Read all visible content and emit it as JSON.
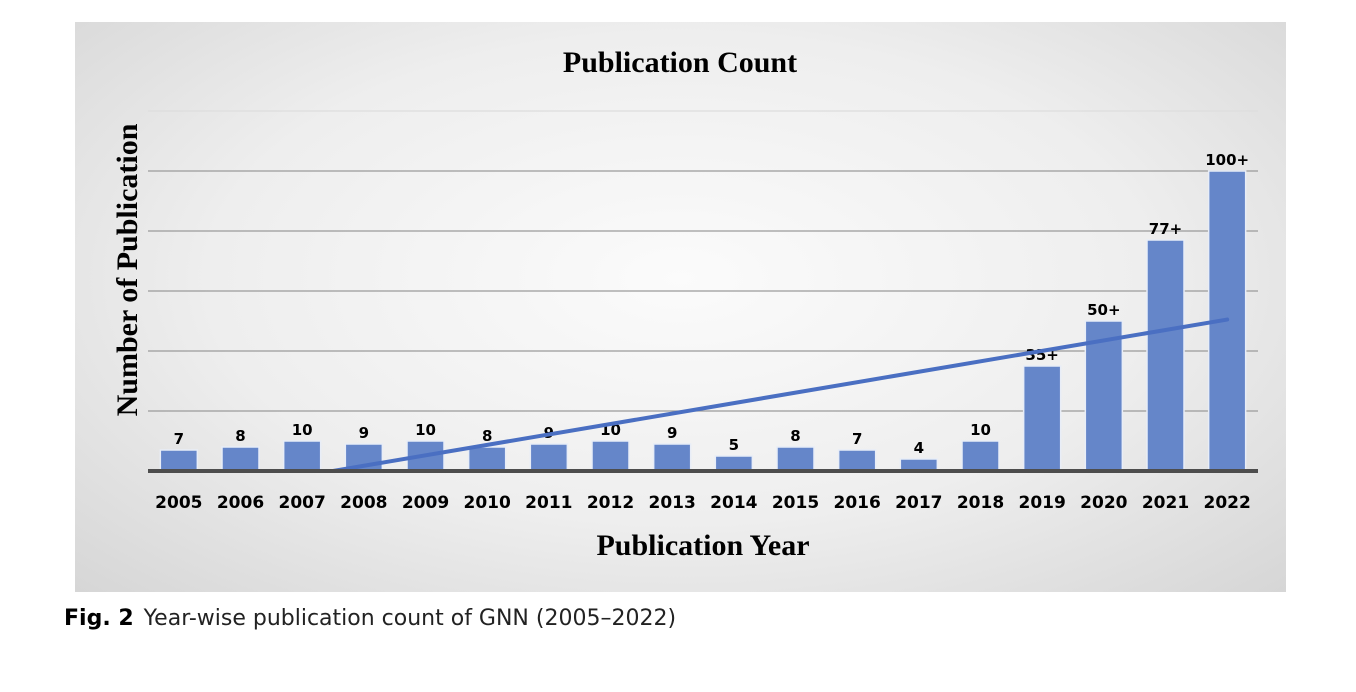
{
  "chart_data": {
    "type": "bar",
    "title": "Publication Count",
    "xlabel": "Publication Year",
    "ylabel": "Number of Publication",
    "categories": [
      "2005",
      "2006",
      "2007",
      "2008",
      "2009",
      "2010",
      "2011",
      "2012",
      "2013",
      "2014",
      "2015",
      "2016",
      "2017",
      "2018",
      "2019",
      "2020",
      "2021",
      "2022"
    ],
    "values": [
      7,
      8,
      10,
      9,
      10,
      8,
      9,
      10,
      9,
      5,
      8,
      7,
      4,
      10,
      35,
      50,
      77,
      100
    ],
    "data_labels": [
      "7",
      "8",
      "10",
      "9",
      "10",
      "8",
      "9",
      "10",
      "9",
      "5",
      "8",
      "7",
      "4",
      "10",
      "35+",
      "50+",
      "77+",
      "100+"
    ],
    "ylim": [
      0,
      120
    ],
    "gridlines": [
      20,
      40,
      60,
      80,
      100,
      120
    ],
    "grid": true,
    "legend": false,
    "trendline": {
      "type": "linear",
      "color": "#4a6fc2"
    },
    "colors": {
      "bar": "#6586c9",
      "bar_edge": "#e8edf7",
      "axis": "#4d4d4d",
      "grid": "#9a9a9a"
    }
  },
  "caption": {
    "label": "Fig. 2",
    "text": "Year-wise publication count of GNN (2005–2022)"
  }
}
